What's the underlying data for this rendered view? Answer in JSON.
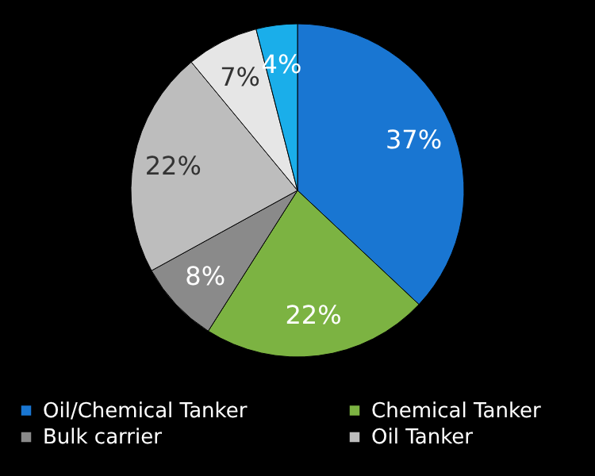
{
  "chart_data": {
    "type": "pie",
    "categories": [
      "Oil/Chemical Tanker",
      "Chemical Tanker",
      "Bulk carrier",
      "Oil Tanker",
      null,
      null
    ],
    "values": [
      37,
      22,
      8,
      22,
      7,
      4
    ],
    "value_labels": [
      "37%",
      "22%",
      "8%",
      "22%",
      "7%",
      "4%"
    ],
    "colors": [
      "#1976d2",
      "#7cb342",
      "#8a8a8a",
      "#bdbdbd",
      "#e6e6e6",
      "#1aaeea"
    ],
    "legend": "bottom"
  }
}
